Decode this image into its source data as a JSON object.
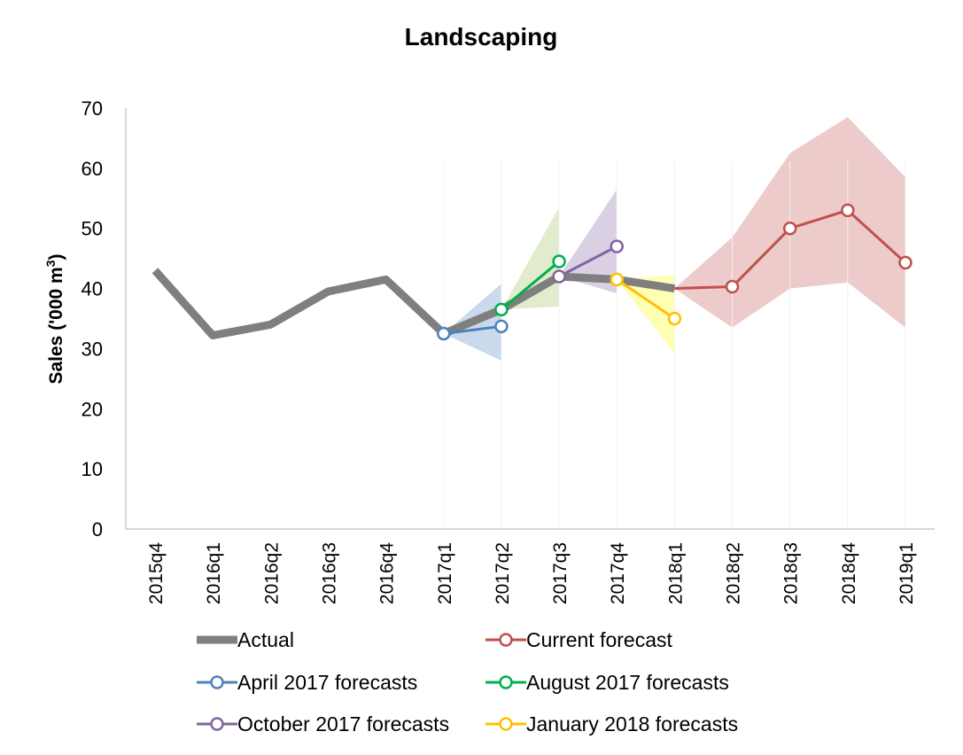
{
  "chart_data": {
    "type": "line",
    "title": "Landscaping",
    "ylabel": "Sales ('000 m",
    "ylabel_sup": "3",
    "ylabel_close": ")",
    "xlabel": "",
    "ylim": [
      0,
      70
    ],
    "yticks": [
      0,
      10,
      20,
      30,
      40,
      50,
      60,
      70
    ],
    "categories": [
      "2015q4",
      "2016q1",
      "2016q2",
      "2016q3",
      "2016q4",
      "2017q1",
      "2017q2",
      "2017q3",
      "2017q4",
      "2018q1",
      "2018q2",
      "2018q3",
      "2018q4",
      "2019q1"
    ],
    "series": [
      {
        "name": "Actual",
        "color": "#7f7f7f",
        "markers": false,
        "values": [
          43,
          32.2,
          34,
          39.5,
          41.5,
          32.5,
          36.5,
          42,
          41.5,
          40,
          null,
          null,
          null,
          null
        ]
      },
      {
        "name": "Current forecast",
        "color": "#c0504d",
        "markers": true,
        "values": [
          null,
          null,
          null,
          null,
          null,
          null,
          null,
          null,
          null,
          40,
          40.3,
          50,
          53,
          44.3
        ],
        "markerStart": 10,
        "band": {
          "color": "#e6b9b8",
          "lower": [
            null,
            null,
            null,
            null,
            null,
            null,
            null,
            null,
            null,
            40,
            33.5,
            40,
            41,
            33.5
          ],
          "upper": [
            null,
            null,
            null,
            null,
            null,
            null,
            null,
            null,
            null,
            40,
            48.5,
            62.5,
            68.5,
            58.5
          ]
        }
      },
      {
        "name": "April 2017 forecasts",
        "color": "#4f81bd",
        "markers": true,
        "values": [
          null,
          null,
          null,
          null,
          null,
          32.5,
          33.7,
          null,
          null,
          null,
          null,
          null,
          null,
          null
        ],
        "band": {
          "color": "#b8cce4",
          "lower": [
            null,
            null,
            null,
            null,
            null,
            32.5,
            28,
            null,
            null,
            null,
            null,
            null,
            null,
            null
          ],
          "upper": [
            null,
            null,
            null,
            null,
            null,
            32.5,
            40.8,
            null,
            null,
            null,
            null,
            null,
            null,
            null
          ]
        }
      },
      {
        "name": "August 2017 forecasts",
        "color": "#00b050",
        "markers": true,
        "values": [
          null,
          null,
          null,
          null,
          null,
          null,
          36.5,
          44.5,
          null,
          null,
          null,
          null,
          null,
          null
        ],
        "band": {
          "color": "#d7e4bd",
          "lower": [
            null,
            null,
            null,
            null,
            null,
            null,
            36.5,
            37,
            null,
            null,
            null,
            null,
            null,
            null
          ],
          "upper": [
            null,
            null,
            null,
            null,
            null,
            null,
            36.5,
            53.5,
            null,
            null,
            null,
            null,
            null,
            null
          ]
        }
      },
      {
        "name": "October 2017 forecasts",
        "color": "#8064a2",
        "markers": true,
        "values": [
          null,
          null,
          null,
          null,
          null,
          null,
          null,
          42,
          47,
          null,
          null,
          null,
          null,
          null
        ],
        "band": {
          "color": "#ccc0da",
          "lower": [
            null,
            null,
            null,
            null,
            null,
            null,
            null,
            42,
            39.2,
            null,
            null,
            null,
            null,
            null
          ],
          "upper": [
            null,
            null,
            null,
            null,
            null,
            null,
            null,
            42,
            56.5,
            null,
            null,
            null,
            null,
            null
          ]
        }
      },
      {
        "name": "January 2018 forecasts",
        "color": "#ffc000",
        "markers": true,
        "values": [
          null,
          null,
          null,
          null,
          null,
          null,
          null,
          null,
          41.5,
          35,
          null,
          null,
          null,
          null
        ],
        "band": {
          "color": "#ffff99",
          "lower": [
            null,
            null,
            null,
            null,
            null,
            null,
            null,
            null,
            41.5,
            29.2,
            null,
            null,
            null,
            null
          ],
          "upper": [
            null,
            null,
            null,
            null,
            null,
            null,
            null,
            null,
            41.5,
            42.2,
            null,
            null,
            null,
            null
          ]
        }
      }
    ],
    "legend": {
      "position": "bottom",
      "entries": [
        "Actual",
        "Current forecast",
        "April 2017 forecasts",
        "August 2017 forecasts",
        "October 2017 forecasts",
        "January 2018 forecasts"
      ]
    },
    "grid": false
  }
}
